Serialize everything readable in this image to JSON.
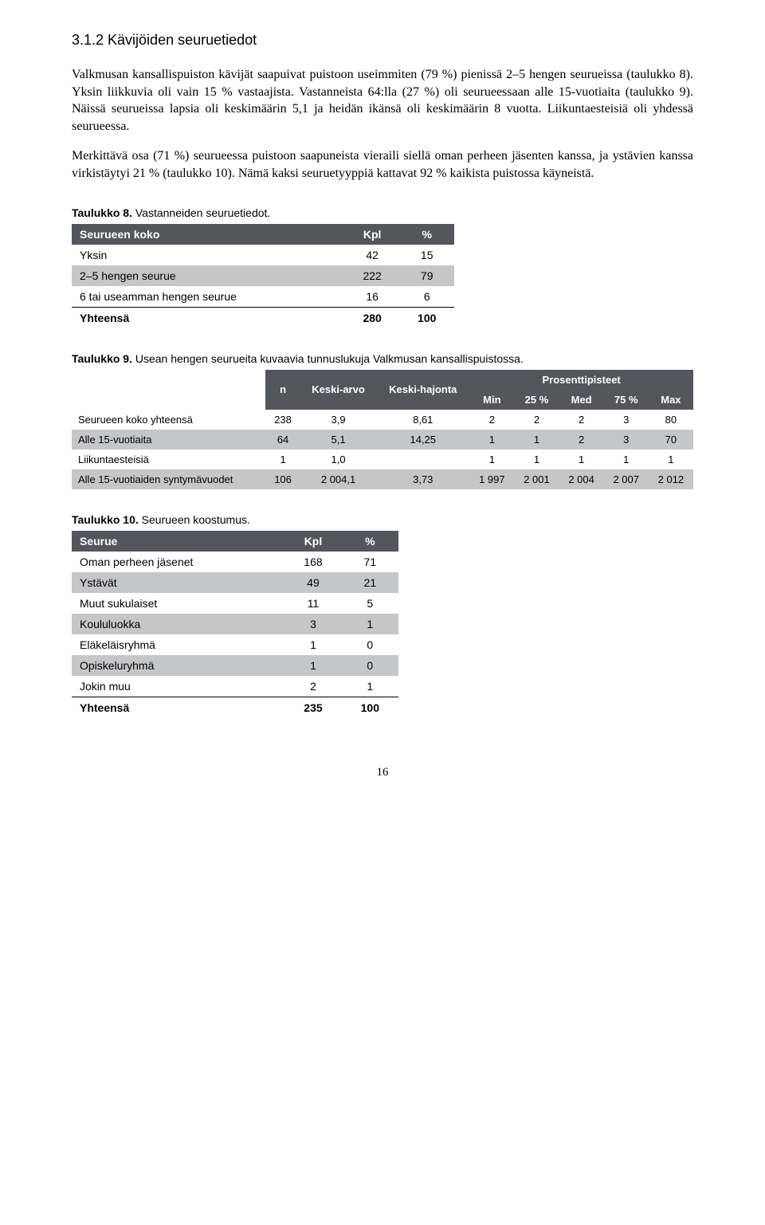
{
  "section": {
    "heading": "3.1.2 Kävijöiden seuruetiedot",
    "para1": "Valkmusan kansallispuiston kävijät saapuivat puistoon useimmiten (79 %) pienissä 2–5 hengen seurueissa (taulukko 8). Yksin liikkuvia oli vain 15 % vastaajista. Vastanneista 64:lla (27 %) oli seurueessaan alle 15-vuotiaita (taulukko 9). Näissä seurueissa lapsia oli keskimäärin 5,1 ja heidän ikänsä oli keskimäärin 8 vuotta. Liikuntaesteisiä oli yhdessä seurueessa.",
    "para2": "Merkittävä osa (71 %) seurueessa puistoon saapuneista vieraili siellä oman perheen jäsenten kanssa, ja ystävien kanssa virkistäytyi 21 % (taulukko 10). Nämä kaksi seuruetyyppiä kattavat 92 % kaikista puistossa käyneistä."
  },
  "table8": {
    "caption_bold": "Taulukko 8.",
    "caption_rest": " Vastanneiden seuruetiedot.",
    "header": [
      "Seurueen koko",
      "Kpl",
      "%"
    ],
    "rows": [
      {
        "cells": [
          "Yksin",
          "42",
          "15"
        ],
        "alt": false
      },
      {
        "cells": [
          "2–5 hengen seurue",
          "222",
          "79"
        ],
        "alt": true
      },
      {
        "cells": [
          "6 tai useamman hengen seurue",
          "16",
          "6"
        ],
        "alt": false
      }
    ],
    "total": [
      "Yhteensä",
      "280",
      "100"
    ]
  },
  "table9": {
    "caption_bold": "Taulukko 9.",
    "caption_rest": " Usean hengen seurueita kuvaavia tunnuslukuja Valkmusan kansallispuistossa.",
    "header_top": {
      "n": "n",
      "keskiarvo": "Keski-arvo",
      "keskihajonta": "Keski-hajonta",
      "prosentti": "Prosenttipisteet"
    },
    "header_sub": [
      "Min",
      "25 %",
      "Med",
      "75 %",
      "Max"
    ],
    "rows": [
      {
        "cells": [
          "Seurueen koko yhteensä",
          "238",
          "3,9",
          "8,61",
          "2",
          "2",
          "2",
          "3",
          "80"
        ],
        "alt": false
      },
      {
        "cells": [
          "Alle 15-vuotiaita",
          "64",
          "5,1",
          "14,25",
          "1",
          "1",
          "2",
          "3",
          "70"
        ],
        "alt": true
      },
      {
        "cells": [
          "Liikuntaesteisiä",
          "1",
          "1,0",
          "",
          "1",
          "1",
          "1",
          "1",
          "1"
        ],
        "alt": false
      },
      {
        "cells": [
          "Alle 15-vuotiaiden syntymävuodet",
          "106",
          "2 004,1",
          "3,73",
          "1 997",
          "2 001",
          "2 004",
          "2 007",
          "2 012"
        ],
        "alt": true
      }
    ]
  },
  "table10": {
    "caption_bold": "Taulukko 10.",
    "caption_rest": " Seurueen koostumus.",
    "header": [
      "Seurue",
      "Kpl",
      "%"
    ],
    "rows": [
      {
        "cells": [
          "Oman perheen jäsenet",
          "168",
          "71"
        ],
        "alt": false
      },
      {
        "cells": [
          "Ystävät",
          "49",
          "21"
        ],
        "alt": true
      },
      {
        "cells": [
          "Muut sukulaiset",
          "11",
          "5"
        ],
        "alt": false
      },
      {
        "cells": [
          "Koululuokka",
          "3",
          "1"
        ],
        "alt": true
      },
      {
        "cells": [
          "Eläkeläisryhmä",
          "1",
          "0"
        ],
        "alt": false
      },
      {
        "cells": [
          "Opiskeluryhmä",
          "1",
          "0"
        ],
        "alt": true
      },
      {
        "cells": [
          "Jokin muu",
          "2",
          "1"
        ],
        "alt": false
      }
    ],
    "total": [
      "Yhteensä",
      "235",
      "100"
    ]
  },
  "page_number": "16"
}
